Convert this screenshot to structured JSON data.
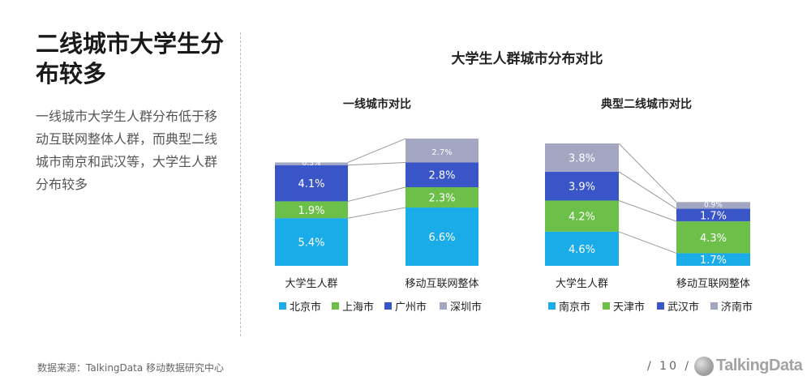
{
  "slide": {
    "title": "二线城市大学生分布较多",
    "body": "一线城市大学生人群分布低于移动互联网整体人群，而典型二线城市南京和武汉等，大学生人群分布较多",
    "chart_title": "大学生人群城市分布对比",
    "source": "数据来源：TalkingData 移动数据研究中心",
    "page_number": "/ 10 /",
    "logo_text": "TalkingData"
  },
  "chart_data": [
    {
      "type": "bar",
      "stacked": true,
      "title": "一线城市对比",
      "categories": [
        "大学生人群",
        "移动互联网整体"
      ],
      "series": [
        {
          "name": "北京市",
          "color": "#1aace8",
          "values": [
            5.4,
            6.6
          ],
          "labels": [
            "5.4%",
            "6.6%"
          ]
        },
        {
          "name": "上海市",
          "color": "#6cc04a",
          "values": [
            1.9,
            2.3
          ],
          "labels": [
            "1.9%",
            "2.3%"
          ]
        },
        {
          "name": "广州市",
          "color": "#3a55c8",
          "values": [
            4.1,
            2.8
          ],
          "labels": [
            "4.1%",
            "2.8%"
          ]
        },
        {
          "name": "深圳市",
          "color": "#a3a6c0",
          "values": [
            0.3,
            2.7
          ],
          "labels": [
            "0.3%",
            "2.7%"
          ]
        }
      ],
      "legend_position": "bottom"
    },
    {
      "type": "bar",
      "stacked": true,
      "title": "典型二线城市对比",
      "categories": [
        "大学生人群",
        "移动互联网整体"
      ],
      "series": [
        {
          "name": "南京市",
          "color": "#1aace8",
          "values": [
            4.6,
            1.7
          ],
          "labels": [
            "4.6%",
            "1.7%"
          ]
        },
        {
          "name": "天津市",
          "color": "#6cc04a",
          "values": [
            4.2,
            4.3
          ],
          "labels": [
            "4.2%",
            "4.3%"
          ]
        },
        {
          "name": "武汉市",
          "color": "#3a55c8",
          "values": [
            3.9,
            1.7
          ],
          "labels": [
            "3.9%",
            "1.7%"
          ]
        },
        {
          "name": "济南市",
          "color": "#a3a6c0",
          "values": [
            3.8,
            0.9
          ],
          "labels": [
            "3.8%",
            "0.9%"
          ]
        }
      ],
      "legend_position": "bottom"
    }
  ]
}
